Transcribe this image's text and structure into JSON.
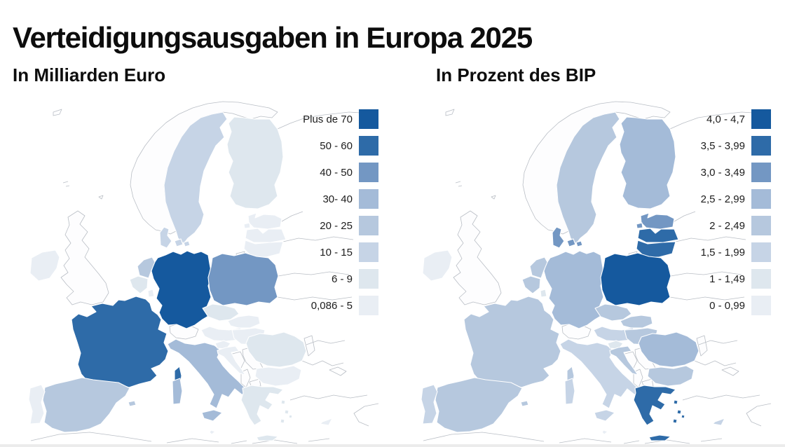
{
  "title": "Verteidigungsausgaben in Europa 2025",
  "chart_data": [
    {
      "type": "choropleth_map",
      "region": "Europa",
      "title": "In Milliarden Euro",
      "legend": [
        {
          "label": "Plus de 70",
          "color": "#15599e"
        },
        {
          "label": "50 - 60",
          "color": "#2e6ba8"
        },
        {
          "label": "40 - 50",
          "color": "#7397c3"
        },
        {
          "label": "30- 40",
          "color": "#a4bbd8"
        },
        {
          "label": "20 - 25",
          "color": "#b6c8de"
        },
        {
          "label": "10 - 15",
          "color": "#c6d4e6"
        },
        {
          "label": "6 - 9",
          "color": "#dee7ee"
        },
        {
          "label": "0,086 - 5",
          "color": "#e9eef4"
        }
      ],
      "country_classes": {
        "germany": "Plus de 70",
        "france": "50 - 60",
        "poland": "40 - 50",
        "italy": "30- 40",
        "spain": "20 - 25",
        "netherlands": "20 - 25",
        "sweden": "10 - 15",
        "denmark": "10 - 15",
        "finland": "6 - 9",
        "belgium": "6 - 9",
        "czechia": "6 - 9",
        "romania": "6 - 9",
        "greece": "6 - 9",
        "ireland": "0,086 - 5",
        "portugal": "0,086 - 5",
        "austria": "0,086 - 5",
        "hungary": "0,086 - 5",
        "slovakia": "0,086 - 5",
        "slovenia": "0,086 - 5",
        "croatia": "0,086 - 5",
        "bulgaria": "0,086 - 5",
        "estonia": "0,086 - 5",
        "latvia": "0,086 - 5",
        "lithuania": "0,086 - 5",
        "luxembourg": "0,086 - 5",
        "cyprus": "0,086 - 5",
        "malta": "0,086 - 5"
      }
    },
    {
      "type": "choropleth_map",
      "region": "Europa",
      "title": "In Prozent des BIP",
      "legend": [
        {
          "label": "4,0 - 4,7",
          "color": "#15599e"
        },
        {
          "label": "3,5 - 3,99",
          "color": "#2e6ba8"
        },
        {
          "label": "3,0 - 3,49",
          "color": "#7397c3"
        },
        {
          "label": "2,5 - 2,99",
          "color": "#a4bbd8"
        },
        {
          "label": "2 - 2,49",
          "color": "#b6c8de"
        },
        {
          "label": "1,5 - 1,99",
          "color": "#c6d4e6"
        },
        {
          "label": "1 - 1,49",
          "color": "#dee7ee"
        },
        {
          "label": "0 - 0,99",
          "color": "#e9eef4"
        }
      ],
      "country_classes": {
        "poland": "4,0 - 4,7",
        "greece": "3,5 - 3,99",
        "latvia": "3,5 - 3,99",
        "lithuania": "3,5 - 3,99",
        "estonia": "3,0 - 3,49",
        "denmark": "3,0 - 3,49",
        "finland": "2,5 - 2,99",
        "germany": "2,5 - 2,99",
        "romania": "2,5 - 2,99",
        "sweden": "2 - 2,49",
        "france": "2 - 2,49",
        "netherlands": "2 - 2,49",
        "belgium": "2 - 2,49",
        "czechia": "2 - 2,49",
        "slovakia": "2 - 2,49",
        "hungary": "2 - 2,49",
        "bulgaria": "2 - 2,49",
        "spain": "2 - 2,49",
        "croatia": "2 - 2,49",
        "portugal": "1,5 - 1,99",
        "italy": "1,5 - 1,99",
        "cyprus": "1,5 - 1,99",
        "austria": "1,5 - 1,99",
        "slovenia": "1 - 1,49",
        "luxembourg": "1 - 1,49",
        "ireland": "0 - 0,99",
        "malta": "0 - 0,99"
      }
    }
  ],
  "no_data_regions": [
    "norway",
    "united-kingdom",
    "switzerland",
    "bosnia",
    "serbia",
    "albania",
    "north-macedonia",
    "moldova",
    "kaliningrad",
    "russia",
    "belarus",
    "ukraine",
    "turkey",
    "north-africa"
  ]
}
